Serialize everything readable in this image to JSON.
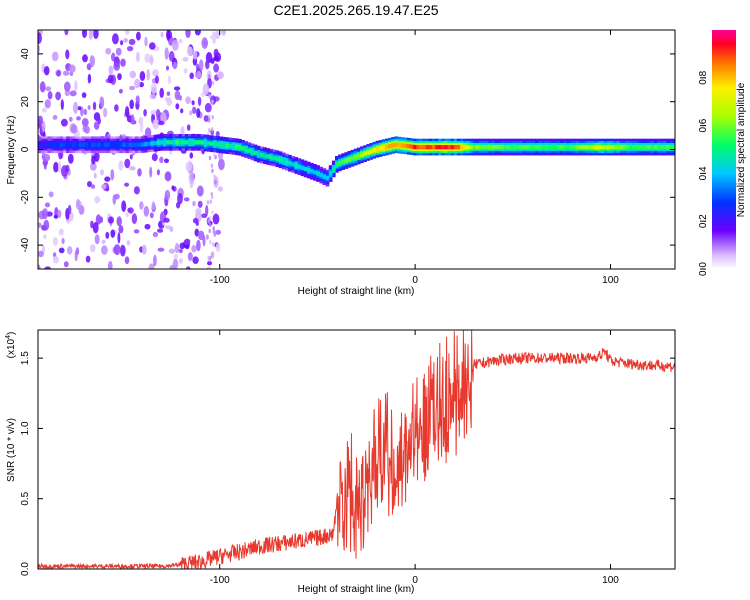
{
  "title": "C2E1.2025.265.19.47.E25",
  "chart_data": [
    {
      "type": "heatmap",
      "title": "C2E1.2025.265.19.47.E25",
      "xlabel": "Height of straight line (km)",
      "ylabel": "Frequency (Hz)",
      "xlim": [
        -193,
        133
      ],
      "ylim": [
        -50,
        50
      ],
      "xticks": [
        -100,
        0,
        100
      ],
      "xtick_labels": [
        "-100",
        "0",
        "100"
      ],
      "yticks": [
        -40,
        -20,
        0,
        20,
        40
      ],
      "ytick_labels": [
        "-40",
        "-20",
        "0",
        "20",
        "40"
      ],
      "colorbar": {
        "label": "Normalized spectral amplitude",
        "range": [
          0,
          1
        ],
        "ticks": [
          0.0,
          0.2,
          0.4,
          0.6,
          0.8
        ],
        "tick_labels": [
          "0.0",
          "0.2",
          "0.4",
          "0.6",
          "0.8"
        ]
      },
      "dominant_frequency_track": {
        "x": [
          -193,
          -165,
          -140,
          -130,
          -120,
          -110,
          -100,
          -90,
          -80,
          -70,
          -60,
          -50,
          -45,
          -40,
          -30,
          -20,
          -10,
          0,
          10,
          20,
          30,
          50,
          80,
          95,
          110,
          133
        ],
        "frequency": [
          2,
          2,
          2,
          3,
          3,
          3,
          2,
          1,
          -2,
          -4,
          -7,
          -10,
          -12,
          -6,
          -3,
          0,
          2,
          1,
          1,
          1,
          1,
          1,
          1,
          1,
          1,
          1
        ],
        "peak_amplitude": [
          0.25,
          0.3,
          0.3,
          0.45,
          0.5,
          0.5,
          0.5,
          0.5,
          0.45,
          0.45,
          0.45,
          0.4,
          0.4,
          0.55,
          0.6,
          0.75,
          0.85,
          0.9,
          0.9,
          0.95,
          0.6,
          0.55,
          0.55,
          0.7,
          0.55,
          0.55
        ]
      }
    },
    {
      "type": "line",
      "xlabel": "Height of straight line (km)",
      "ylabel": "SNR (10 * v/v)",
      "scale_label": "(x10",
      "scale_exponent": "4",
      "xlim": [
        -193,
        133
      ],
      "ylim": [
        0,
        1.7
      ],
      "xticks": [
        -100,
        0,
        100
      ],
      "xtick_labels": [
        "-100",
        "0",
        "100"
      ],
      "yticks": [
        0.0,
        0.5,
        1.0,
        1.5
      ],
      "ytick_labels": [
        "0.0",
        "0.5",
        "1.0",
        "1.5"
      ],
      "color": "#e8392e",
      "series": [
        {
          "name": "SNR",
          "x": [
            -193,
            -180,
            -160,
            -140,
            -130,
            -120,
            -110,
            -100,
            -90,
            -80,
            -70,
            -60,
            -50,
            -42,
            -38,
            -35,
            -30,
            -25,
            -20,
            -15,
            -10,
            -5,
            0,
            5,
            10,
            15,
            20,
            25,
            30,
            40,
            50,
            60,
            70,
            80,
            90,
            95,
            97,
            100,
            110,
            120,
            133
          ],
          "values": [
            0.02,
            0.02,
            0.02,
            0.02,
            0.02,
            0.03,
            0.05,
            0.09,
            0.12,
            0.16,
            0.18,
            0.2,
            0.22,
            0.25,
            0.7,
            0.65,
            0.6,
            0.75,
            0.85,
            0.9,
            0.95,
            1.0,
            1.1,
            1.15,
            1.25,
            1.3,
            1.35,
            1.4,
            1.45,
            1.48,
            1.5,
            1.5,
            1.5,
            1.5,
            1.5,
            1.52,
            1.55,
            1.48,
            1.46,
            1.45,
            1.44
          ]
        }
      ]
    }
  ]
}
